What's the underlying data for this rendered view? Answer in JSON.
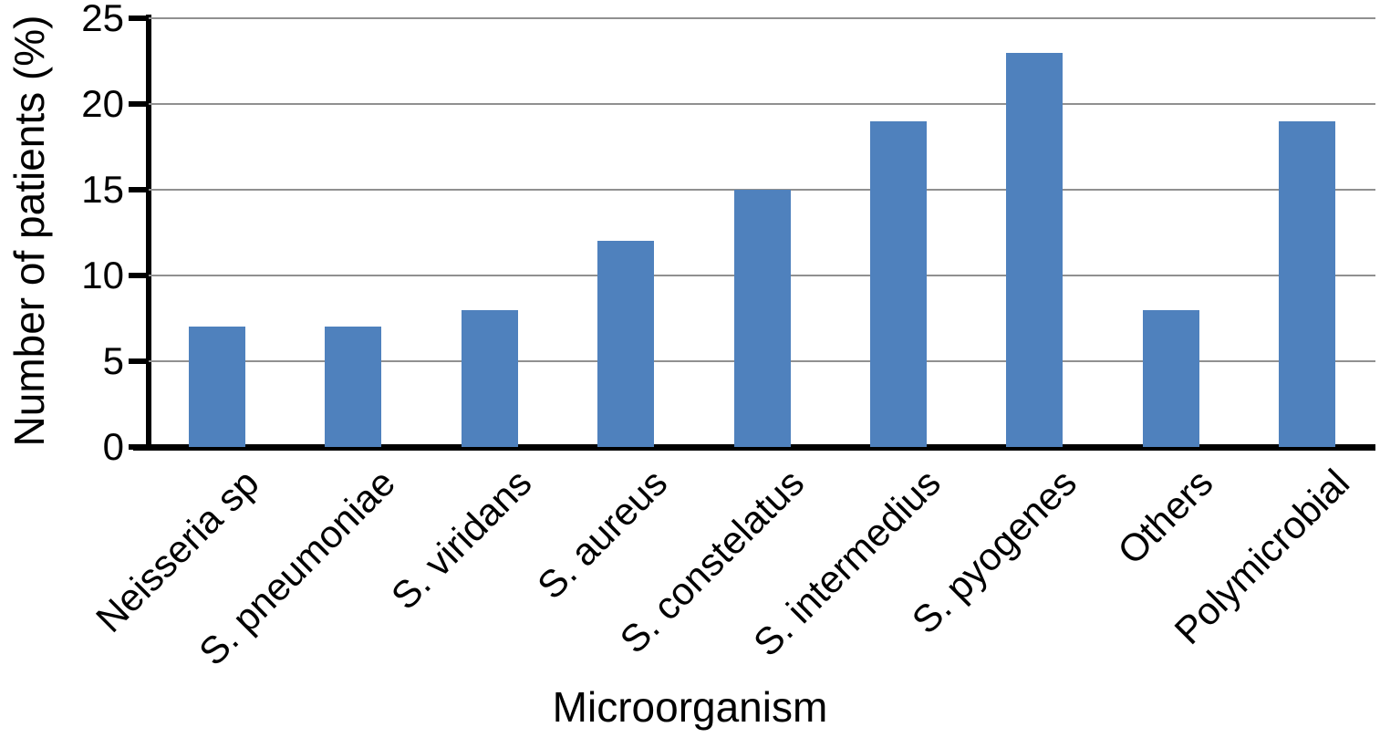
{
  "chart_data": {
    "type": "bar",
    "title": "",
    "xlabel": "Microorganism",
    "ylabel": "Number of patients (%)",
    "categories": [
      "Neisseria sp",
      "S. pneumoniae",
      "S. viridans",
      "S. aureus",
      "S. constelatus",
      "S. intermedius",
      "S. pyogenes",
      "Others",
      "Polymicrobial"
    ],
    "values": [
      7,
      7,
      8,
      12,
      15,
      19,
      23,
      8,
      19
    ],
    "ylim": [
      0,
      25
    ],
    "yticks": [
      0,
      5,
      10,
      15,
      20,
      25
    ],
    "grid": "horizontal",
    "legend_position": "none",
    "x_label_rotation_deg": 45,
    "bar_color": "#4f81bd",
    "gridline_color": "#909090",
    "axis_color": "#000000"
  }
}
